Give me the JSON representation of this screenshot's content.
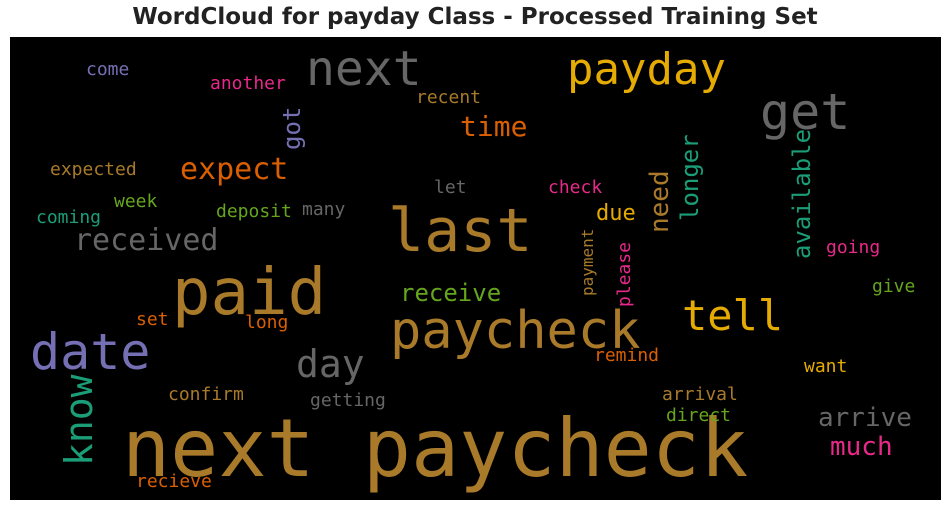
{
  "chart_data": {
    "type": "wordcloud",
    "title": "WordCloud for payday Class - Processed Training Set",
    "background": "#000000",
    "words": [
      {
        "text": "next paycheck",
        "color": "#a87a2a"
      },
      {
        "text": "paid",
        "color": "#a87a2a"
      },
      {
        "text": "last",
        "color": "#a87a2a"
      },
      {
        "text": "paycheck",
        "color": "#a87a2a"
      },
      {
        "text": "date",
        "color": "#7570b3"
      },
      {
        "text": "next",
        "color": "#666666"
      },
      {
        "text": "payday",
        "color": "#e6ab02"
      },
      {
        "text": "get",
        "color": "#666666"
      },
      {
        "text": "tell",
        "color": "#e6ab02"
      },
      {
        "text": "know",
        "color": "#1b9e77"
      },
      {
        "text": "day",
        "color": "#666666"
      },
      {
        "text": "received",
        "color": "#666666"
      },
      {
        "text": "expect",
        "color": "#d95f02"
      },
      {
        "text": "time",
        "color": "#d95f02"
      },
      {
        "text": "arrive",
        "color": "#666666"
      },
      {
        "text": "much",
        "color": "#e7298a"
      },
      {
        "text": "need",
        "color": "#a87a2a"
      },
      {
        "text": "longer",
        "color": "#1b9e77"
      },
      {
        "text": "available",
        "color": "#1b9e77"
      },
      {
        "text": "got",
        "color": "#7570b3"
      },
      {
        "text": "receive",
        "color": "#66a61e"
      },
      {
        "text": "due",
        "color": "#e6ab02"
      },
      {
        "text": "come",
        "color": "#7570b3"
      },
      {
        "text": "another",
        "color": "#e7298a"
      },
      {
        "text": "recent",
        "color": "#a87a2a"
      },
      {
        "text": "expected",
        "color": "#a87a2a"
      },
      {
        "text": "let",
        "color": "#666666"
      },
      {
        "text": "check",
        "color": "#e7298a"
      },
      {
        "text": "week",
        "color": "#66a61e"
      },
      {
        "text": "coming",
        "color": "#1b9e77"
      },
      {
        "text": "deposit",
        "color": "#66a61e"
      },
      {
        "text": "many",
        "color": "#666666"
      },
      {
        "text": "payment",
        "color": "#a87a2a"
      },
      {
        "text": "please",
        "color": "#e7298a"
      },
      {
        "text": "going",
        "color": "#e7298a"
      },
      {
        "text": "give",
        "color": "#66a61e"
      },
      {
        "text": "set",
        "color": "#d95f02"
      },
      {
        "text": "long",
        "color": "#d95f02"
      },
      {
        "text": "remind",
        "color": "#d95f02"
      },
      {
        "text": "want",
        "color": "#e6ab02"
      },
      {
        "text": "confirm",
        "color": "#a87a2a"
      },
      {
        "text": "getting",
        "color": "#666666"
      },
      {
        "text": "arrival",
        "color": "#a87a2a"
      },
      {
        "text": "direct",
        "color": "#66a61e"
      },
      {
        "text": "recieve",
        "color": "#d95f02"
      }
    ]
  }
}
